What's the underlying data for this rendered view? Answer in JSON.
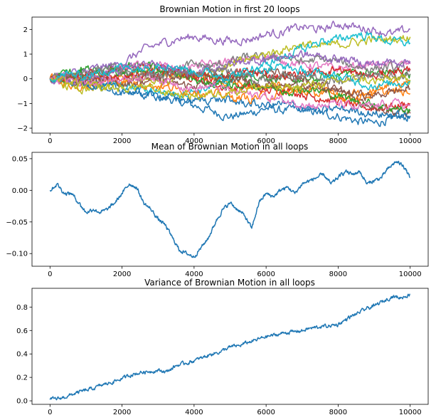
{
  "chart_data": [
    {
      "type": "line",
      "title": "Brownian Motion in first 20 loops",
      "xlabel": "",
      "ylabel": "",
      "xlim": [
        -500,
        10500
      ],
      "ylim": [
        -2.2,
        2.5
      ],
      "xticks": [
        0,
        2000,
        4000,
        6000,
        8000,
        10000
      ],
      "yticks": [
        -2,
        -1,
        0,
        1,
        2
      ],
      "grid": false,
      "legend": "none",
      "colors": [
        "#1f77b4",
        "#ff7f0e",
        "#2ca02c",
        "#d62728",
        "#9467bd",
        "#8c564b",
        "#e377c2",
        "#7f7f7f",
        "#bcbd22",
        "#17becf"
      ],
      "x": [
        0,
        500,
        1000,
        1500,
        2000,
        2500,
        3000,
        3500,
        4000,
        4500,
        5000,
        5500,
        6000,
        6500,
        7000,
        7500,
        8000,
        8500,
        9000,
        9500,
        10000
      ],
      "series": [
        {
          "values": [
            0,
            0.05,
            -0.2,
            -0.4,
            -0.5,
            -0.6,
            -0.7,
            -0.9,
            -1.1,
            -1.3,
            -1.55,
            -1.4,
            -1.2,
            -1.3,
            -1.2,
            -1.4,
            -1.5,
            -1.7,
            -1.8,
            -1.6,
            -1.55
          ]
        },
        {
          "values": [
            0,
            -0.2,
            -0.3,
            -0.2,
            0.1,
            0.2,
            0.3,
            0.2,
            0.1,
            0.0,
            -0.1,
            -0.3,
            -0.4,
            -0.3,
            -0.5,
            -0.4,
            -0.7,
            -0.6,
            -0.5,
            -0.2,
            -0.1
          ]
        },
        {
          "values": [
            0,
            0.2,
            0.5,
            0.4,
            0.5,
            0.6,
            0.4,
            0.3,
            0.2,
            0.1,
            0.0,
            0.2,
            0.1,
            0.0,
            -0.1,
            0.0,
            0.2,
            0.3,
            0.2,
            0.3,
            0.2
          ]
        },
        {
          "values": [
            0,
            0.1,
            0.3,
            0.2,
            0.4,
            0.5,
            0.4,
            0.3,
            0.1,
            -0.2,
            -0.4,
            -0.3,
            -0.5,
            -0.4,
            -0.6,
            -0.8,
            -0.9,
            -1.1,
            -1.2,
            -1.1,
            -1.0
          ]
        },
        {
          "values": [
            0,
            0.2,
            0.3,
            0.5,
            0.6,
            1.1,
            1.4,
            1.6,
            1.7,
            1.6,
            1.55,
            1.6,
            1.8,
            1.9,
            2.1,
            2.0,
            2.2,
            2.1,
            2.0,
            1.8,
            2.0
          ]
        },
        {
          "values": [
            0,
            -0.1,
            -0.2,
            0.0,
            0.2,
            0.1,
            -0.1,
            -0.2,
            -0.3,
            -0.2,
            0.0,
            0.2,
            0.3,
            0.2,
            0.0,
            -0.2,
            -0.5,
            -0.8,
            -1.1,
            -1.3,
            -1.4
          ]
        },
        {
          "values": [
            0,
            0.1,
            0.0,
            0.2,
            0.4,
            0.5,
            0.6,
            0.4,
            0.5,
            0.6,
            0.7,
            0.8,
            0.9,
            0.7,
            0.6,
            0.5,
            0.4,
            0.5,
            0.6,
            0.5,
            0.6
          ]
        },
        {
          "values": [
            0,
            0.0,
            0.1,
            0.3,
            0.2,
            0.3,
            0.2,
            0.4,
            0.6,
            0.5,
            0.7,
            0.9,
            0.8,
            0.9,
            0.7,
            0.8,
            0.7,
            0.5,
            0.4,
            0.5,
            0.4
          ]
        },
        {
          "values": [
            0,
            -0.3,
            -0.5,
            -0.4,
            -0.2,
            0.0,
            -0.1,
            0.1,
            0.2,
            0.3,
            0.5,
            0.8,
            1.0,
            1.2,
            1.4,
            1.3,
            1.4,
            1.5,
            1.6,
            1.6,
            1.7
          ]
        },
        {
          "values": [
            0,
            0.1,
            0.0,
            -0.2,
            -0.3,
            -0.4,
            -0.5,
            -0.6,
            -0.5,
            -0.3,
            -0.1,
            0.3,
            0.6,
            0.9,
            1.2,
            1.5,
            1.6,
            1.8,
            1.7,
            1.5,
            1.45
          ]
        },
        {
          "values": [
            0,
            -0.1,
            -0.2,
            -0.3,
            -0.5,
            -0.6,
            -0.7,
            -0.8,
            -0.9,
            -0.8,
            -0.9,
            -1.0,
            -1.1,
            -1.0,
            -1.2,
            -1.3,
            -1.2,
            -1.3,
            -1.4,
            -1.5,
            -1.5
          ]
        },
        {
          "values": [
            0,
            0.0,
            0.1,
            0.0,
            -0.1,
            -0.2,
            -0.3,
            -0.4,
            -0.5,
            -0.6,
            -0.7,
            -0.8,
            -0.7,
            -0.6,
            -0.5,
            -0.6,
            -0.7,
            -0.8,
            -0.6,
            -0.5,
            -0.6
          ]
        },
        {
          "values": [
            0,
            0.1,
            0.2,
            0.3,
            0.2,
            0.3,
            0.4,
            0.2,
            0.0,
            -0.2,
            -0.3,
            -0.2,
            -0.3,
            -0.5,
            -0.4,
            -0.5,
            -0.7,
            -0.9,
            -1.0,
            -1.2,
            -1.3
          ]
        },
        {
          "values": [
            0,
            0.05,
            0.15,
            0.1,
            0.0,
            0.1,
            0.2,
            0.3,
            0.1,
            0.0,
            0.2,
            0.3,
            0.2,
            0.1,
            0.2,
            0.3,
            0.4,
            0.2,
            0.1,
            0.3,
            0.35
          ]
        },
        {
          "values": [
            0,
            -0.1,
            0.0,
            0.2,
            0.4,
            0.6,
            0.5,
            0.3,
            0.2,
            0.4,
            0.6,
            0.7,
            0.8,
            0.9,
            1.0,
            0.9,
            0.8,
            0.7,
            0.6,
            0.7,
            0.7
          ]
        },
        {
          "values": [
            0,
            0.05,
            -0.05,
            -0.1,
            -0.2,
            -0.1,
            0.0,
            0.1,
            0.2,
            0.1,
            0.0,
            -0.1,
            -0.2,
            -0.3,
            -0.2,
            -0.4,
            -0.5,
            -0.6,
            -0.7,
            -0.5,
            -0.4
          ]
        },
        {
          "values": [
            0,
            -0.05,
            -0.15,
            -0.1,
            0.0,
            0.1,
            0.0,
            -0.2,
            -0.4,
            -0.3,
            -0.5,
            -0.6,
            -0.7,
            -0.9,
            -1.0,
            -1.1,
            -1.0,
            -1.2,
            -1.1,
            -1.0,
            -1.1
          ]
        },
        {
          "values": [
            0,
            0.1,
            0.2,
            0.4,
            0.3,
            0.2,
            0.1,
            0.2,
            0.3,
            0.4,
            0.3,
            0.1,
            0.0,
            0.2,
            0.1,
            0.0,
            -0.1,
            0.1,
            0.2,
            0.1,
            0.2
          ]
        },
        {
          "values": [
            0,
            -0.15,
            -0.3,
            -0.35,
            -0.4,
            -0.3,
            -0.5,
            -0.6,
            -0.7,
            -0.6,
            -0.5,
            -0.4,
            -0.3,
            -0.4,
            -0.3,
            -0.2,
            -0.1,
            0.0,
            -0.1,
            0.0,
            -0.05
          ]
        },
        {
          "values": [
            0,
            0.2,
            0.1,
            0.3,
            0.5,
            0.4,
            0.6,
            0.5,
            0.3,
            0.2,
            0.1,
            0.3,
            0.4,
            0.5,
            0.3,
            0.2,
            0.1,
            -0.1,
            -0.3,
            -0.2,
            -0.1
          ]
        }
      ]
    },
    {
      "type": "line",
      "title": "Mean of Brownian Motion in all loops",
      "xlabel": "",
      "ylabel": "",
      "xlim": [
        -500,
        10500
      ],
      "ylim": [
        -0.12,
        0.06
      ],
      "xticks": [
        0,
        2000,
        4000,
        6000,
        8000,
        10000
      ],
      "yticks": [
        -0.1,
        -0.05,
        0.0,
        0.05
      ],
      "ytick_labels": [
        "−0.10",
        "−0.05",
        "0.00",
        "0.05"
      ],
      "grid": false,
      "legend": "none",
      "colors": [
        "#1f77b4"
      ],
      "x": [
        0,
        200,
        400,
        600,
        800,
        1000,
        1200,
        1400,
        1600,
        1800,
        2000,
        2200,
        2400,
        2600,
        2800,
        3000,
        3200,
        3400,
        3600,
        3800,
        4000,
        4200,
        4400,
        4600,
        4800,
        5000,
        5200,
        5400,
        5600,
        5800,
        6000,
        6200,
        6400,
        6600,
        6800,
        7000,
        7200,
        7400,
        7600,
        7800,
        8000,
        8200,
        8400,
        8600,
        8800,
        9000,
        9200,
        9400,
        9600,
        9800,
        10000
      ],
      "series": [
        {
          "values": [
            0.0,
            0.01,
            -0.005,
            -0.005,
            -0.02,
            -0.035,
            -0.03,
            -0.035,
            -0.03,
            -0.02,
            -0.005,
            0.01,
            0.005,
            -0.02,
            -0.03,
            -0.045,
            -0.055,
            -0.075,
            -0.095,
            -0.1,
            -0.105,
            -0.09,
            -0.075,
            -0.05,
            -0.03,
            -0.02,
            -0.03,
            -0.04,
            -0.06,
            -0.02,
            -0.005,
            -0.01,
            0.0,
            0.005,
            -0.005,
            0.01,
            0.015,
            0.02,
            0.025,
            0.01,
            0.02,
            0.03,
            0.025,
            0.03,
            0.01,
            0.015,
            0.02,
            0.035,
            0.045,
            0.04,
            0.02
          ]
        }
      ]
    },
    {
      "type": "line",
      "title": "Variance of Brownian Motion in all loops",
      "xlabel": "",
      "ylabel": "",
      "xlim": [
        -500,
        10500
      ],
      "ylim": [
        -0.03,
        0.96
      ],
      "xticks": [
        0,
        2000,
        4000,
        6000,
        8000,
        10000
      ],
      "yticks": [
        0.0,
        0.2,
        0.4,
        0.6,
        0.8
      ],
      "ytick_labels": [
        "0.0",
        "0.2",
        "0.4",
        "0.6",
        "0.8"
      ],
      "grid": false,
      "legend": "none",
      "colors": [
        "#1f77b4"
      ],
      "x": [
        0,
        250,
        500,
        750,
        1000,
        1250,
        1500,
        1750,
        2000,
        2250,
        2500,
        2750,
        3000,
        3250,
        3500,
        3750,
        4000,
        4250,
        4500,
        4750,
        5000,
        5250,
        5500,
        5750,
        6000,
        6250,
        6500,
        6750,
        7000,
        7250,
        7500,
        7750,
        8000,
        8250,
        8500,
        8750,
        9000,
        9250,
        9500,
        9750,
        10000
      ],
      "series": [
        {
          "values": [
            0.01,
            0.02,
            0.04,
            0.07,
            0.09,
            0.11,
            0.14,
            0.16,
            0.19,
            0.22,
            0.24,
            0.25,
            0.26,
            0.25,
            0.3,
            0.32,
            0.34,
            0.37,
            0.4,
            0.42,
            0.46,
            0.47,
            0.5,
            0.52,
            0.55,
            0.56,
            0.58,
            0.59,
            0.6,
            0.62,
            0.63,
            0.64,
            0.65,
            0.7,
            0.74,
            0.78,
            0.81,
            0.85,
            0.89,
            0.88,
            0.91
          ]
        }
      ]
    }
  ]
}
